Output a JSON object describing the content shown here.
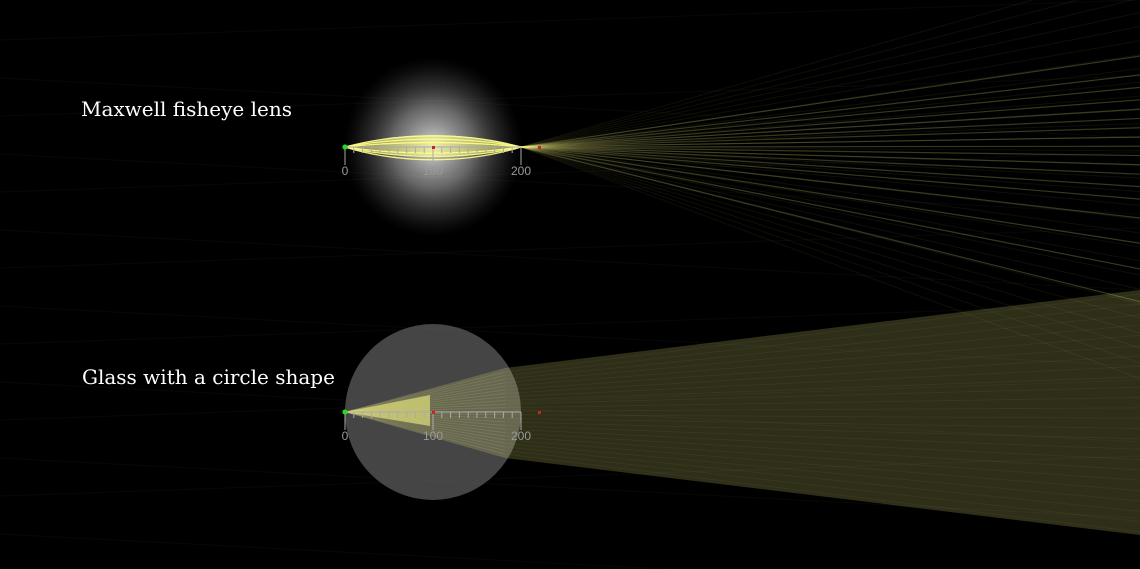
{
  "panels": [
    {
      "title": "Maxwell fisheye lens",
      "lens_type": "gradient-index",
      "ruler_ticks": [
        "0",
        "100",
        "200"
      ]
    },
    {
      "title": "Glass with a circle shape",
      "lens_type": "uniform-glass-circle",
      "ruler_ticks": [
        "0",
        "100",
        "200"
      ]
    }
  ],
  "colors": {
    "background": "#000000",
    "ray": "#ffff88",
    "source_point": "#22dd22",
    "focus_marker": "#cc2222",
    "ruler": "#aaaaaa",
    "title_text": "#ffffff"
  }
}
